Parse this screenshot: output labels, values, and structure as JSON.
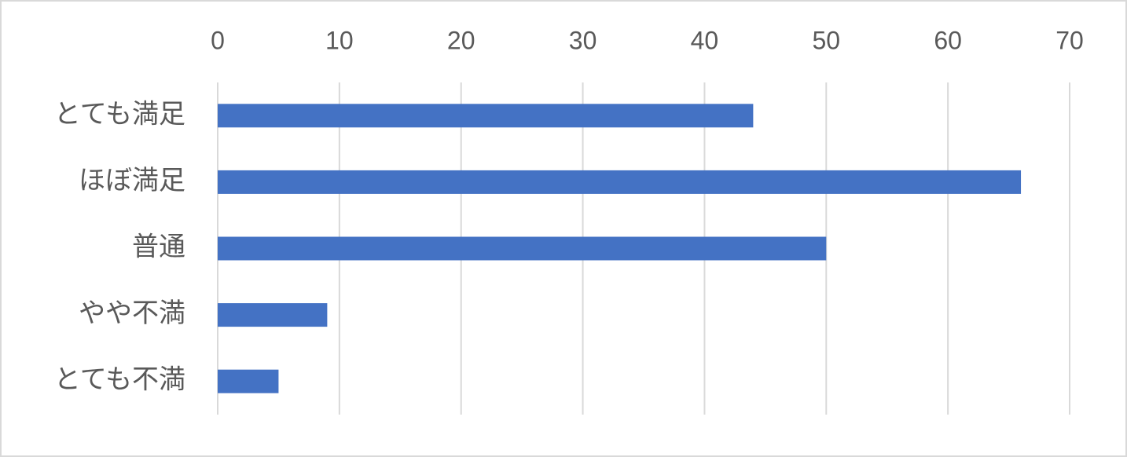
{
  "chart_data": {
    "type": "bar",
    "orientation": "horizontal",
    "categories": [
      "とても満足",
      "ほぼ満足",
      "普通",
      "やや不満",
      "とても不満"
    ],
    "values": [
      44,
      66,
      50,
      9,
      5
    ],
    "color": "#4472c4",
    "xlim": [
      0,
      70
    ],
    "xticks": [
      0,
      10,
      20,
      30,
      40,
      50,
      60,
      70
    ],
    "grid": true
  }
}
